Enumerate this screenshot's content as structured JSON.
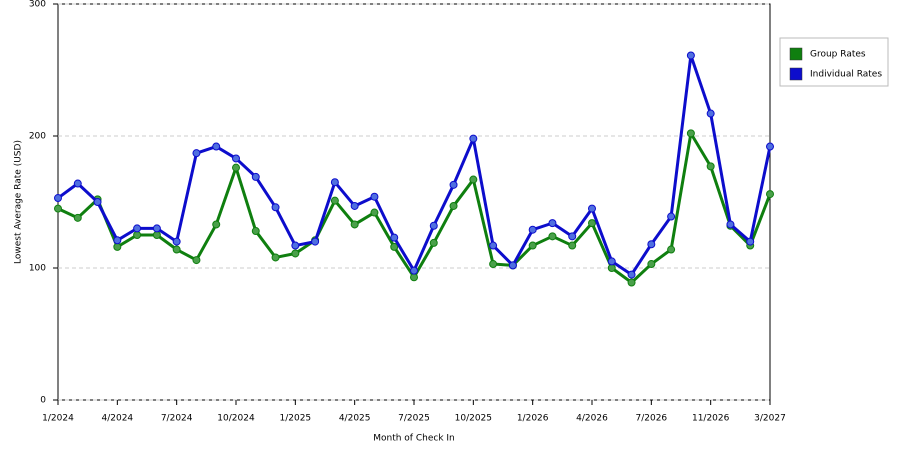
{
  "chart_data": {
    "type": "line",
    "x_label": "Month of Check In",
    "y_label": "Lowest Average Rate (USD)",
    "categories": [
      "1/2024",
      null,
      null,
      "4/2024",
      null,
      null,
      "7/2024",
      null,
      null,
      "10/2024",
      null,
      null,
      "1/2025",
      null,
      null,
      "4/2025",
      null,
      null,
      "7/2025",
      null,
      null,
      "10/2025",
      null,
      null,
      "1/2026",
      null,
      null,
      "4/2026",
      null,
      null,
      "7/2026",
      null,
      null,
      "11/2026",
      null,
      null,
      "3/2027"
    ],
    "series": [
      {
        "name": "Group Rates",
        "color": "#0f7f0f",
        "marker_color": "#4aa04a",
        "values": [
          145,
          138,
          152,
          116,
          125,
          125,
          114,
          106,
          133,
          176,
          128,
          108,
          111,
          121,
          151,
          133,
          142,
          116,
          93,
          119,
          147,
          167,
          103,
          102,
          117,
          124,
          117,
          134,
          100,
          89,
          103,
          114,
          202,
          177,
          132,
          117,
          156
        ]
      },
      {
        "name": "Individual Rates",
        "color": "#0d0dcc",
        "marker_color": "#4f6fe0",
        "values": [
          153,
          164,
          150,
          121,
          130,
          130,
          120,
          187,
          192,
          183,
          169,
          146,
          117,
          120,
          165,
          147,
          154,
          123,
          98,
          132,
          163,
          198,
          117,
          102,
          129,
          134,
          124,
          145,
          105,
          95,
          118,
          139,
          261,
          217,
          133,
          120,
          192
        ]
      }
    ],
    "ylim": [
      0,
      300
    ],
    "yticks": [
      0,
      100,
      200,
      300
    ],
    "grid": true,
    "legend": "right"
  }
}
